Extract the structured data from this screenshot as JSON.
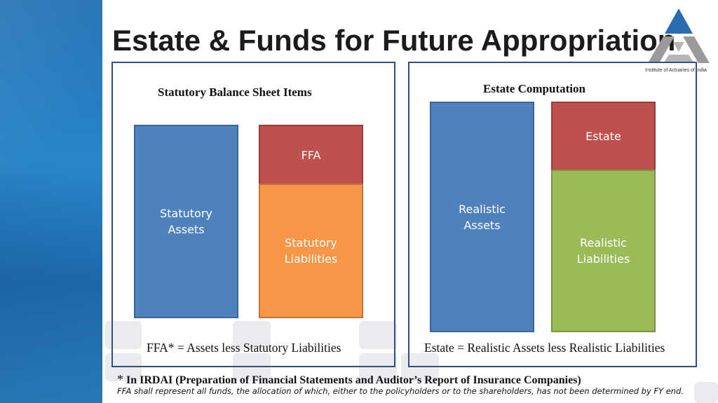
{
  "title": "Estate & Funds for Future Appropriation",
  "logo": {
    "caption": "Institute of Actuaries of India",
    "icon": "iai-triangle-logo"
  },
  "left_panel": {
    "title": "Statutory Balance Sheet Items",
    "assets_label": "Statutory\nAssets",
    "ffa_label": "FFA",
    "liabilities_label": "Statutory\nLiabilities",
    "formula": "FFA* = Assets less Statutory Liabilities"
  },
  "right_panel": {
    "title": "Estate Computation",
    "assets_label": "Realistic\nAssets",
    "estate_label": "Estate",
    "liabilities_label": "Realistic\nLiabilities",
    "formula": "Estate = Realistic Assets less Realistic Liabilities"
  },
  "footnote": {
    "star": "*",
    "heading": "In IRDAI (Preparation of Financial Statements and Auditor’s Report of Insurance Companies)",
    "text": "FFA shall represent all funds, the allocation of which, either to the policyholders or to the shareholders, has not been determined by FY end."
  },
  "colors": {
    "assets": "#4f81bd",
    "ffa_estate": "#c0504d",
    "statutory_liabilities": "#f79646",
    "realistic_liabilities": "#9bbb59",
    "panel_border": "#2f4f84"
  }
}
